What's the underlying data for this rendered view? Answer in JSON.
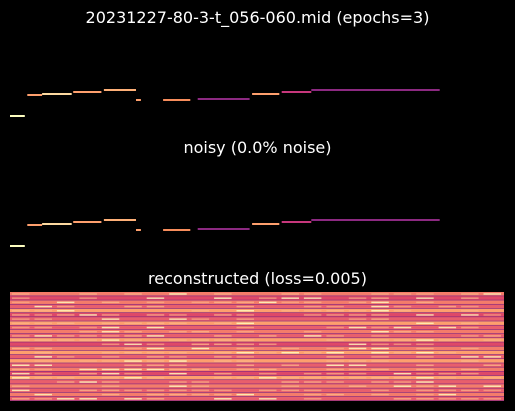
{
  "titles": {
    "main": "20231227-80-3-t_056-060.mid (epochs=3)",
    "noisy": "noisy (0.0% noise)",
    "reconstructed": "reconstructed (loss=0.005)"
  },
  "colormap": {
    "background": "#000000",
    "low": "#3b0f70",
    "mid_low": "#8c2981",
    "mid": "#de4968",
    "mid_high": "#fe9f6d",
    "high": "#fcfdbf"
  },
  "notes": [
    {
      "start": 0.0,
      "end": 0.03,
      "pitch": 0.17,
      "color": "#fcfdbf"
    },
    {
      "start": 0.035,
      "end": 0.065,
      "pitch": 0.38,
      "color": "#fe9f6d"
    },
    {
      "start": 0.065,
      "end": 0.125,
      "pitch": 0.39,
      "color": "#fcd9a0"
    },
    {
      "start": 0.128,
      "end": 0.185,
      "pitch": 0.41,
      "color": "#fe9f6d"
    },
    {
      "start": 0.19,
      "end": 0.255,
      "pitch": 0.43,
      "color": "#feb078"
    },
    {
      "start": 0.255,
      "end": 0.265,
      "pitch": 0.33,
      "color": "#fe9f6d"
    },
    {
      "start": 0.31,
      "end": 0.365,
      "pitch": 0.33,
      "color": "#f78d5c"
    },
    {
      "start": 0.38,
      "end": 0.485,
      "pitch": 0.34,
      "color": "#8c2981"
    },
    {
      "start": 0.49,
      "end": 0.545,
      "pitch": 0.39,
      "color": "#fe9f6d"
    },
    {
      "start": 0.55,
      "end": 0.61,
      "pitch": 0.41,
      "color": "#c7377c"
    },
    {
      "start": 0.61,
      "end": 0.87,
      "pitch": 0.43,
      "color": "#8c2981"
    }
  ],
  "reconstruction": {
    "rows": 26,
    "row_levels": [
      0.62,
      0.48,
      0.66,
      0.52,
      0.71,
      0.45,
      0.58,
      0.69,
      0.5,
      0.64,
      0.55,
      0.73,
      0.47,
      0.6,
      0.68,
      0.51,
      0.75,
      0.56,
      0.63,
      0.49,
      0.7,
      0.54,
      0.66,
      0.58,
      0.61,
      0.52
    ]
  }
}
